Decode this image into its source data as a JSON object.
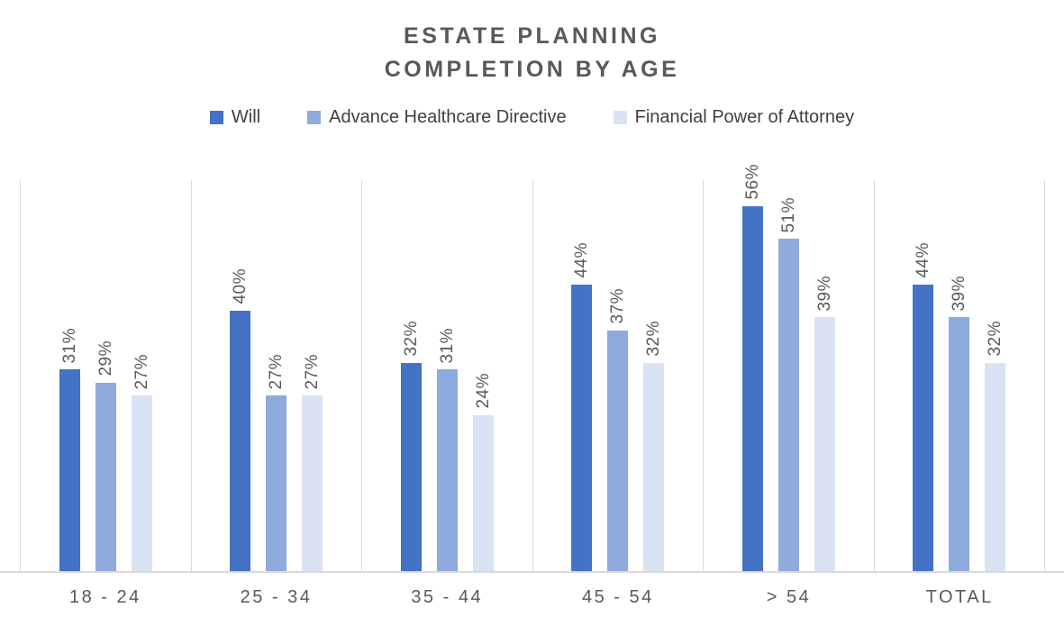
{
  "title": {
    "line1": "ESTATE PLANNING",
    "line2": "COMPLETION BY AGE"
  },
  "chart_data": {
    "type": "bar",
    "title": "ESTATE PLANNING COMPLETION BY AGE",
    "categories": [
      "18 - 24",
      "25 - 34",
      "35 - 44",
      "45 - 54",
      "> 54",
      "TOTAL"
    ],
    "series": [
      {
        "name": "Will",
        "color": "#4472C4",
        "values": [
          31,
          40,
          32,
          44,
          56,
          44
        ]
      },
      {
        "name": "Advance Healthcare Directive",
        "color": "#8FAADC",
        "values": [
          29,
          27,
          31,
          37,
          51,
          39
        ]
      },
      {
        "name": "Financial Power of Attorney",
        "color": "#DAE3F3",
        "values": [
          27,
          27,
          24,
          32,
          39,
          32
        ]
      }
    ],
    "value_suffix": "%",
    "ylim": [
      0,
      60
    ],
    "data_labels": "rotated-vertical-above-bars",
    "legend_position": "top-center",
    "gridlines": "vertical-category-separators",
    "grid_color": "#D9D9D9",
    "axis_line_color": "#D9D9D9",
    "title_color": "#595959",
    "label_color": "#595959",
    "legend_text_color": "#404040"
  }
}
